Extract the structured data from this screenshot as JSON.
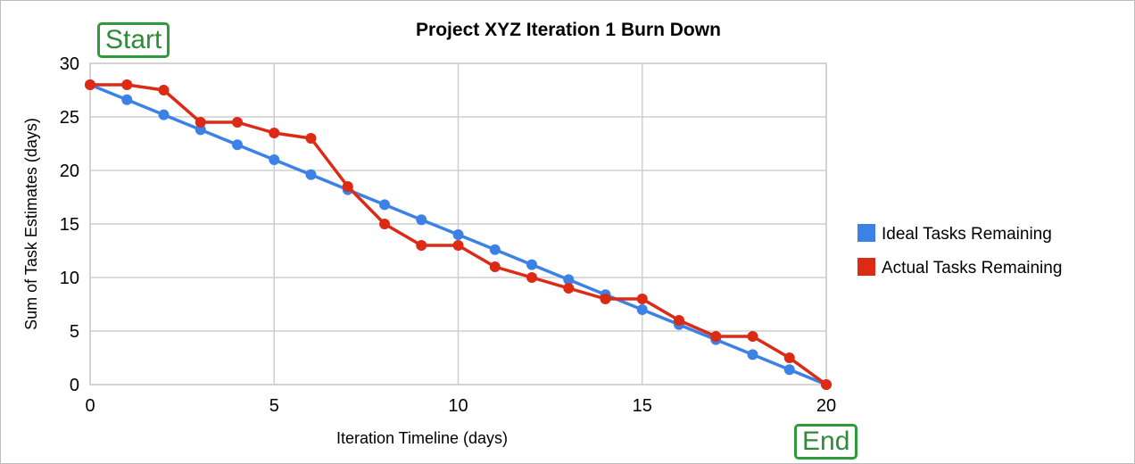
{
  "chart_data": {
    "type": "line",
    "title": "Project XYZ Iteration 1 Burn Down",
    "xlabel": "Iteration Timeline (days)",
    "ylabel": "Sum of Task Estimates (days)",
    "xlim": [
      0,
      20
    ],
    "ylim": [
      0,
      30
    ],
    "xticks": [
      "0",
      "5",
      "10",
      "15",
      "20"
    ],
    "yticks": [
      "0",
      "5",
      "10",
      "15",
      "20",
      "25",
      "30"
    ],
    "x": [
      0,
      1,
      2,
      3,
      4,
      5,
      6,
      7,
      8,
      9,
      10,
      11,
      12,
      13,
      14,
      15,
      16,
      17,
      18,
      19,
      20
    ],
    "series": [
      {
        "name": "Ideal Tasks Remaining",
        "color": "#3c82e6",
        "values": [
          28,
          26.6,
          25.2,
          23.8,
          22.4,
          21,
          19.6,
          18.2,
          16.8,
          15.4,
          14,
          12.6,
          11.2,
          9.8,
          8.4,
          7,
          5.6,
          4.2,
          2.8,
          1.4,
          0
        ]
      },
      {
        "name": "Actual Tasks Remaining",
        "color": "#dc2a14",
        "values": [
          28,
          28,
          27.5,
          24.5,
          24.5,
          23.5,
          23,
          18.5,
          15,
          13,
          13,
          11,
          10,
          9,
          8,
          8,
          6,
          4.5,
          4.5,
          2.5,
          0
        ]
      }
    ],
    "grid": true,
    "legend": "right",
    "annotations": [
      "Start",
      "End"
    ]
  }
}
